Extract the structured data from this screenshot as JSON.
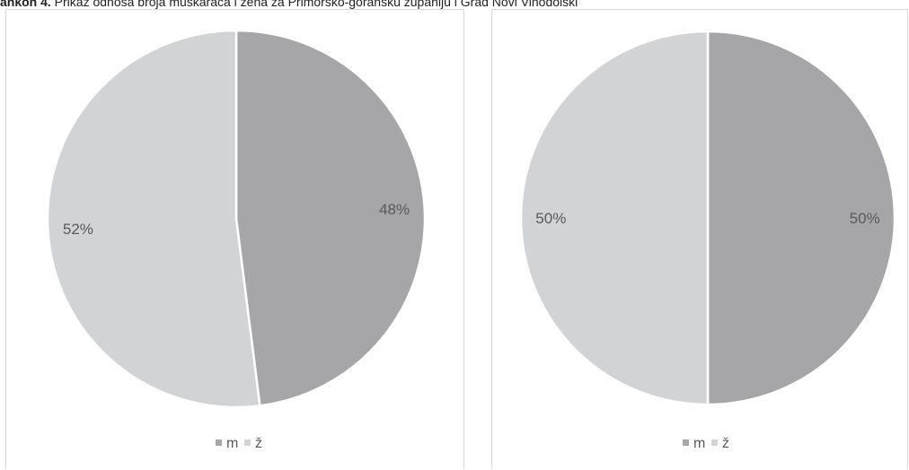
{
  "caption": {
    "lead": "ankon 4.",
    "text": " Prikaz odnosa broja muškaraca i žena za Primorsko-goransku županiju i Grad Novi Vinodolski"
  },
  "chart_data": [
    {
      "type": "pie",
      "categories": [
        "m",
        "ž"
      ],
      "values": [
        48,
        52
      ],
      "labels": [
        "48%",
        "52%"
      ],
      "colors": [
        "#a6a6a8",
        "#d2d3d5"
      ],
      "legend": {
        "position": "bottom",
        "items": [
          "m",
          "ž"
        ]
      }
    },
    {
      "type": "pie",
      "categories": [
        "m",
        "ž"
      ],
      "values": [
        50,
        50
      ],
      "labels": [
        "50%",
        "50%"
      ],
      "colors": [
        "#a6a6a8",
        "#d2d3d5"
      ],
      "legend": {
        "position": "bottom",
        "items": [
          "m",
          "ž"
        ]
      }
    }
  ]
}
